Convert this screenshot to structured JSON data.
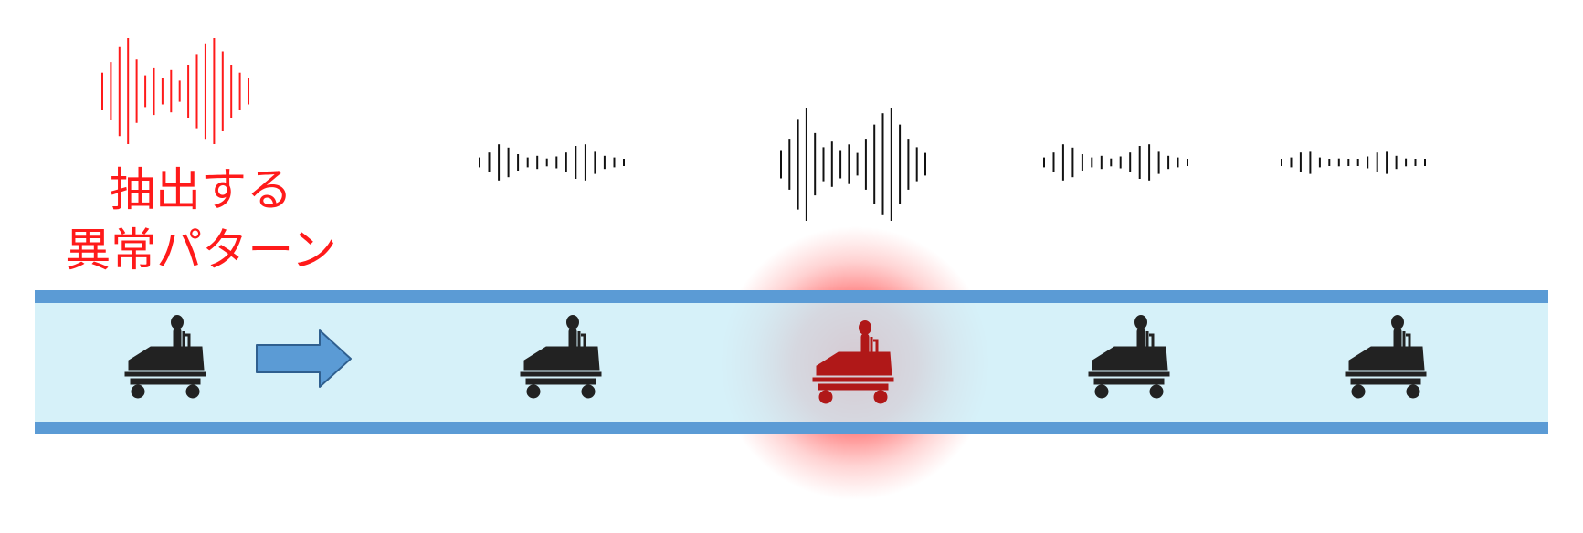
{
  "caption": {
    "line1": "抽出する",
    "line2": "異常パターン"
  },
  "colors": {
    "anomaly": "#ff1a1a",
    "normal": "#111111",
    "pipe_band": "#5b9bd5",
    "pipe_fill": "#cdeef8",
    "arrow_fill": "#5b9bd5",
    "arrow_stroke": "#2f5f8f",
    "robot": "#222222",
    "robot_anomaly": "#b01818"
  },
  "waveforms": [
    {
      "id": "extracted",
      "state": "anomaly",
      "amplitudes": [
        0.35,
        0.55,
        0.85,
        1.0,
        0.6,
        0.3,
        0.45,
        0.25,
        0.4,
        0.2,
        0.5,
        0.7,
        0.9,
        1.0,
        0.75,
        0.5,
        0.35,
        0.25
      ]
    },
    {
      "id": "robot-1",
      "state": "normal",
      "amplitudes": [
        0.15,
        0.3,
        0.55,
        0.45,
        0.25,
        0.15,
        0.2,
        0.12,
        0.18,
        0.3,
        0.5,
        0.55,
        0.35,
        0.2,
        0.15,
        0.1
      ]
    },
    {
      "id": "robot-2",
      "state": "anomaly-source",
      "amplitudes": [
        0.25,
        0.45,
        0.8,
        1.0,
        0.55,
        0.3,
        0.4,
        0.25,
        0.35,
        0.2,
        0.45,
        0.7,
        0.9,
        1.0,
        0.7,
        0.45,
        0.3,
        0.2
      ]
    },
    {
      "id": "robot-3",
      "state": "normal",
      "amplitudes": [
        0.15,
        0.3,
        0.55,
        0.45,
        0.25,
        0.15,
        0.2,
        0.12,
        0.18,
        0.3,
        0.5,
        0.55,
        0.35,
        0.2,
        0.15,
        0.1
      ]
    },
    {
      "id": "robot-4",
      "state": "normal",
      "amplitudes": [
        0.08,
        0.15,
        0.3,
        0.35,
        0.15,
        0.1,
        0.12,
        0.08,
        0.1,
        0.18,
        0.3,
        0.35,
        0.2,
        0.12,
        0.1,
        0.08
      ]
    }
  ],
  "robots": [
    {
      "id": "robot-source",
      "state": "normal"
    },
    {
      "id": "robot-1",
      "state": "normal"
    },
    {
      "id": "robot-2",
      "state": "anomaly"
    },
    {
      "id": "robot-3",
      "state": "normal"
    },
    {
      "id": "robot-4",
      "state": "normal"
    }
  ]
}
